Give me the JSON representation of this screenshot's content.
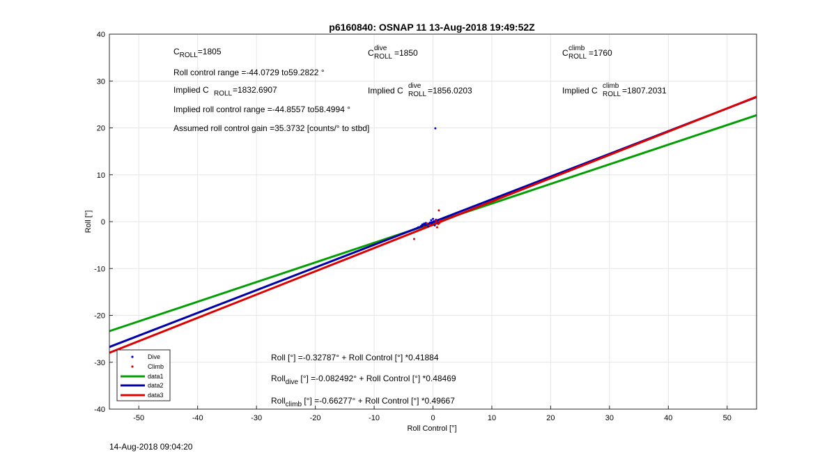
{
  "footer": {
    "timestamp": "14-Aug-2018 09:04:20"
  },
  "chart_data": {
    "type": "scatter",
    "title": "p6160840: OSNAP 11 13-Aug-2018 19:49:52Z",
    "xlabel": "Roll Control [°]",
    "ylabel": "Roll [°]",
    "xlim": [
      -55,
      55
    ],
    "ylim": [
      -40,
      40
    ],
    "xticks": [
      -50,
      -40,
      -30,
      -20,
      -10,
      0,
      10,
      20,
      30,
      40,
      50
    ],
    "yticks": [
      -40,
      -30,
      -20,
      -10,
      0,
      10,
      20,
      30,
      40
    ],
    "grid": true,
    "legend_position": "bottom-left",
    "colors": {
      "dive": "#0000cc",
      "climb": "#dd0000",
      "data1": "#00a000",
      "data2": "#0000aa",
      "data3": "#dd0000"
    },
    "annotations": {
      "c_roll": {
        "base": "C",
        "sub": "ROLL",
        "sup": "",
        "rest": "=1805"
      },
      "c_roll_dive": {
        "base": "C",
        "sub": "ROLL",
        "sup": "dive",
        "rest": " =1850"
      },
      "c_roll_climb": {
        "base": "C",
        "sub": "ROLL",
        "sup": "climb",
        "rest": " =1760"
      },
      "roll_range": "Roll control range =-44.0729 to59.2822 °",
      "implied_c_roll": {
        "pre": "Implied C",
        "sub": "ROLL",
        "sup": "",
        "rest": " =1832.6907"
      },
      "implied_c_roll_dive": {
        "pre": "Implied C",
        "sub": "ROLL",
        "sup": "dive",
        "rest": " =1856.0203"
      },
      "implied_c_roll_climb": {
        "pre": "Implied C",
        "sub": "ROLL",
        "sup": "climb",
        "rest": " =1807.2031"
      },
      "implied_range": "Implied roll control range =-44.8557 to58.4994 °",
      "gain": "Assumed roll control gain =35.3732 [counts/° to stbd]",
      "eq1": "Roll [°] =-0.32787° + Roll Control [°] *0.41884",
      "eq2": {
        "pre": "Roll",
        "sub": "dive",
        "rest": " [°] =-0.082492° + Roll Control [°] *0.48469"
      },
      "eq3": {
        "pre": "Roll",
        "sub": "climb",
        "rest": " [°] =-0.66277° + Roll Control [°] *0.49667"
      }
    },
    "series": [
      {
        "name": "Dive",
        "kind": "points",
        "color": "#0000cc",
        "points": [
          [
            -2.5,
            -1.2
          ],
          [
            -1.8,
            -0.6
          ],
          [
            -1.2,
            -0.3
          ],
          [
            -0.8,
            -1.0
          ],
          [
            -0.5,
            -0.2
          ],
          [
            -0.3,
            0.3
          ],
          [
            -0.1,
            -0.5
          ],
          [
            0.0,
            0.6
          ],
          [
            0.2,
            0.1
          ],
          [
            0.3,
            -0.8
          ],
          [
            0.5,
            0.4
          ],
          [
            0.8,
            -0.2
          ],
          [
            -2.0,
            -0.9
          ],
          [
            -1.5,
            -0.4
          ],
          [
            0.4,
            19.9
          ]
        ]
      },
      {
        "name": "Climb",
        "kind": "points",
        "color": "#dd0000",
        "points": [
          [
            -3.2,
            -3.7
          ],
          [
            -1.5,
            -1.1
          ],
          [
            -1.0,
            -0.4
          ],
          [
            0.0,
            -0.6
          ],
          [
            0.5,
            0.3
          ],
          [
            0.7,
            -1.2
          ],
          [
            1.0,
            2.4
          ],
          [
            1.2,
            0.2
          ],
          [
            0.9,
            -0.5
          ],
          [
            0.6,
            -0.1
          ],
          [
            -0.6,
            -0.8
          ],
          [
            1.1,
            -0.3
          ]
        ]
      },
      {
        "name": "data1",
        "kind": "line",
        "color": "#00a000",
        "intercept": -0.32787,
        "slope": 0.41884
      },
      {
        "name": "data2",
        "kind": "line",
        "color": "#0000aa",
        "intercept": -0.082492,
        "slope": 0.48469
      },
      {
        "name": "data3",
        "kind": "line",
        "color": "#dd0000",
        "intercept": -0.66277,
        "slope": 0.49667
      }
    ]
  }
}
